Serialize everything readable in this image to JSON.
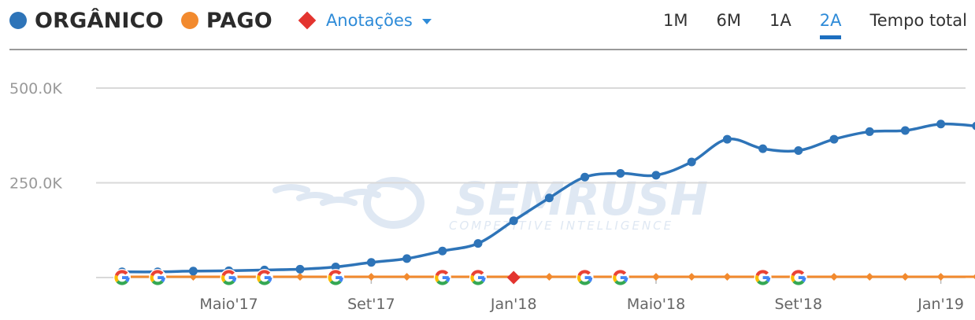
{
  "legend": {
    "organic_label": "ORGÂNICO",
    "paid_label": "PAGO",
    "annotations_label": "Anotações"
  },
  "periods": [
    "1M",
    "6M",
    "1A",
    "2A",
    "Tempo total"
  ],
  "active_period": "2A",
  "watermark": {
    "brand": "SEMRUSH",
    "tagline": "COMPETITIVE INTELLIGENCE"
  },
  "colors": {
    "organic": "#2e74b8",
    "paid": "#f28a2e",
    "annotation": "#e3342f",
    "grid": "#d9d9d9",
    "watermark": "#dfe8f3",
    "google_blue": "#4285F4",
    "google_red": "#EA4335",
    "google_yellow": "#FBBC05",
    "google_green": "#34A853"
  },
  "chart_data": {
    "type": "line",
    "x": [
      "2017-02",
      "2017-03",
      "2017-04",
      "2017-05",
      "2017-06",
      "2017-07",
      "2017-08",
      "2017-09",
      "2017-10",
      "2017-11",
      "2017-12",
      "2018-01",
      "2018-02",
      "2018-03",
      "2018-04",
      "2018-05",
      "2018-06",
      "2018-07",
      "2018-08",
      "2018-09",
      "2018-10",
      "2018-11",
      "2018-12",
      "2019-01",
      "2019-02"
    ],
    "x_tick_labels": [
      "Maio'17",
      "Set'17",
      "Jan'18",
      "Maio'18",
      "Set'18",
      "Jan'19"
    ],
    "x_tick_values": [
      "2017-05",
      "2017-09",
      "2018-01",
      "2018-05",
      "2018-09",
      "2019-01"
    ],
    "series": [
      {
        "name": "ORGÂNICO",
        "color": "#2e74b8",
        "values": [
          15000,
          15000,
          17000,
          18000,
          20000,
          22000,
          28000,
          40000,
          50000,
          70000,
          90000,
          150000,
          210000,
          265000,
          275000,
          270000,
          305000,
          365000,
          340000,
          335000,
          365000,
          385000,
          388000,
          405000,
          400000
        ]
      },
      {
        "name": "PAGO",
        "color": "#f28a2e",
        "values": [
          2000,
          2000,
          2000,
          2000,
          2000,
          2000,
          2000,
          2000,
          2000,
          2000,
          2000,
          2000,
          2000,
          2000,
          2000,
          2000,
          2000,
          2000,
          2000,
          2000,
          2000,
          2000,
          2000,
          2000,
          2000
        ]
      }
    ],
    "y_tick_labels": [
      "500.0K",
      "250.0K"
    ],
    "y_tick_values": [
      500000,
      250000
    ],
    "ylim": [
      0,
      500000
    ],
    "google_update_markers_at": [
      "2017-02",
      "2017-03",
      "2017-05",
      "2017-06",
      "2017-08",
      "2017-11",
      "2017-12",
      "2018-03",
      "2018-04",
      "2018-08",
      "2018-09"
    ],
    "annotation_markers_at": [
      "2018-01"
    ],
    "grid": true
  }
}
